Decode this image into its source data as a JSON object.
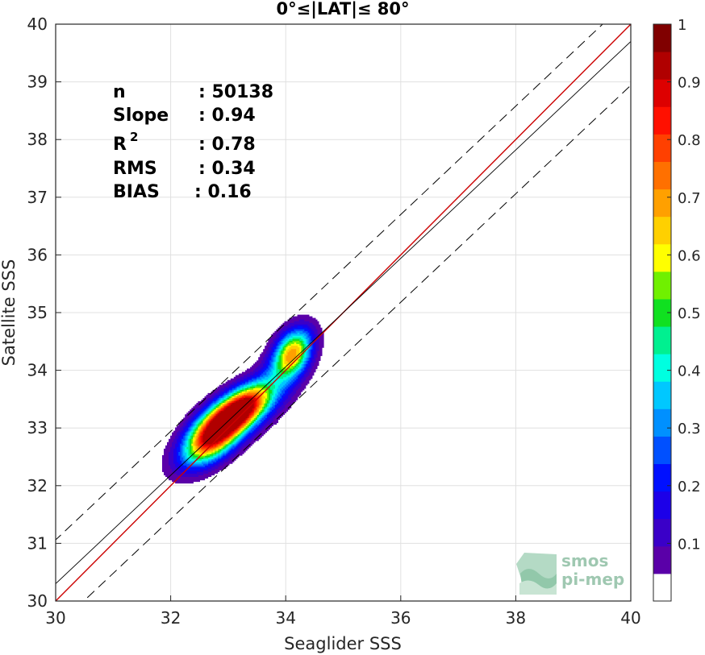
{
  "chart_data": {
    "type": "scatter",
    "title": "0°≤|LAT|≤ 80°",
    "xlabel": "Seaglider SSS",
    "ylabel": "Satellite SSS",
    "xlim": [
      30,
      40
    ],
    "ylim": [
      30,
      40
    ],
    "xticks": [
      "30",
      "32",
      "34",
      "36",
      "38",
      "40"
    ],
    "yticks": [
      "30",
      "31",
      "32",
      "33",
      "34",
      "35",
      "36",
      "37",
      "38",
      "39",
      "40"
    ],
    "grid": true,
    "density_peaks": [
      {
        "x": 32.75,
        "y": 32.9,
        "value": 0.95
      },
      {
        "x": 33.2,
        "y": 33.3,
        "value": 0.9
      },
      {
        "x": 34.1,
        "y": 34.3,
        "value": 0.65
      }
    ],
    "lines": [
      {
        "name": "1:1",
        "color": "#cc0000",
        "slope": 1.0,
        "intercept": 0.0
      },
      {
        "name": "fit",
        "color": "#000000",
        "slope": 0.94,
        "intercept": 2.1
      },
      {
        "name": "fit + 2σ",
        "color": "#000000",
        "style": "dashed",
        "slope": 0.94,
        "intercept": 2.86
      },
      {
        "name": "fit - 2σ",
        "color": "#000000",
        "style": "dashed",
        "slope": 0.94,
        "intercept": 1.34
      }
    ],
    "stats": [
      {
        "label": "n",
        "sep": ": 50138"
      },
      {
        "label": "Slope",
        "sep": ": 0.94"
      },
      {
        "label": "R",
        "sup": "2",
        "sep": ": 0.78"
      },
      {
        "label": "RMS",
        "sep": ": 0.34"
      },
      {
        "label": "BIAS",
        "sep": ": 0.16"
      }
    ],
    "colorbar": {
      "ticks": [
        "0.1",
        "0.2",
        "0.3",
        "0.4",
        "0.5",
        "0.6",
        "0.7",
        "0.8",
        "0.9",
        "1"
      ],
      "colors": [
        "#ffffff",
        "#5a00a8",
        "#3a00c8",
        "#1c00e8",
        "#0010ff",
        "#0050ff",
        "#0090ff",
        "#00c8ff",
        "#00ffe0",
        "#00f090",
        "#10e020",
        "#70f000",
        "#ffff00",
        "#ffd000",
        "#ffa000",
        "#ff7000",
        "#ff4000",
        "#ff1000",
        "#dd0000",
        "#b00000",
        "#800000"
      ]
    }
  },
  "logo": {
    "line1": "smos",
    "line2": "pi-mep"
  }
}
